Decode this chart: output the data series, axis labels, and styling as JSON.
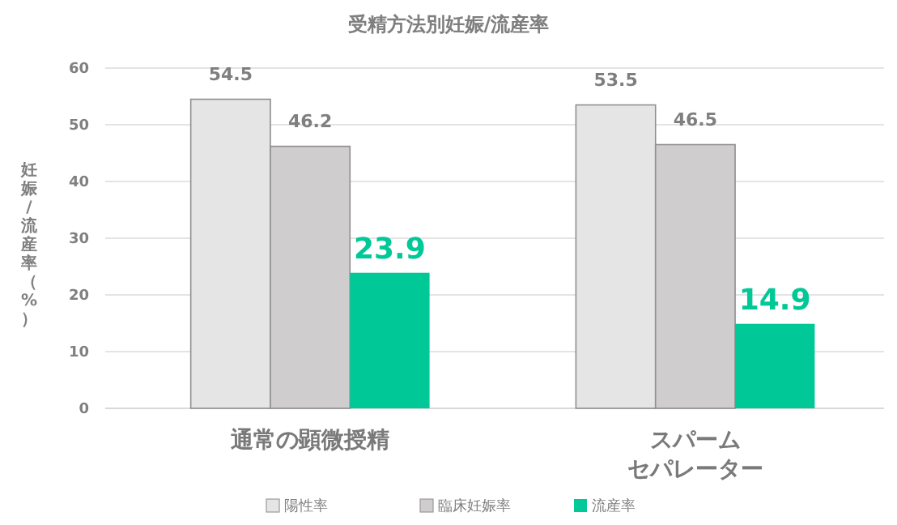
{
  "chart_data": {
    "type": "bar",
    "title": "受精方法別妊娠/流産率",
    "ylabel": "妊娠/流産率（%）",
    "categories": [
      "通常の顕微授精",
      "スパームセパレーター"
    ],
    "series": [
      {
        "name": "陽性率",
        "color": "#e6e5e6",
        "values": [
          54.5,
          53.5
        ]
      },
      {
        "name": "臨床妊娠率",
        "color": "#cfcdce",
        "values": [
          46.2,
          46.5
        ]
      },
      {
        "name": "流産率",
        "color": "#00c896",
        "values": [
          23.9,
          14.9
        ]
      }
    ],
    "ylim": [
      0,
      60
    ],
    "yticks": [
      0,
      10,
      20,
      30,
      40,
      50,
      60
    ],
    "grid": "y",
    "legend": "bottom",
    "data_labels": true
  }
}
